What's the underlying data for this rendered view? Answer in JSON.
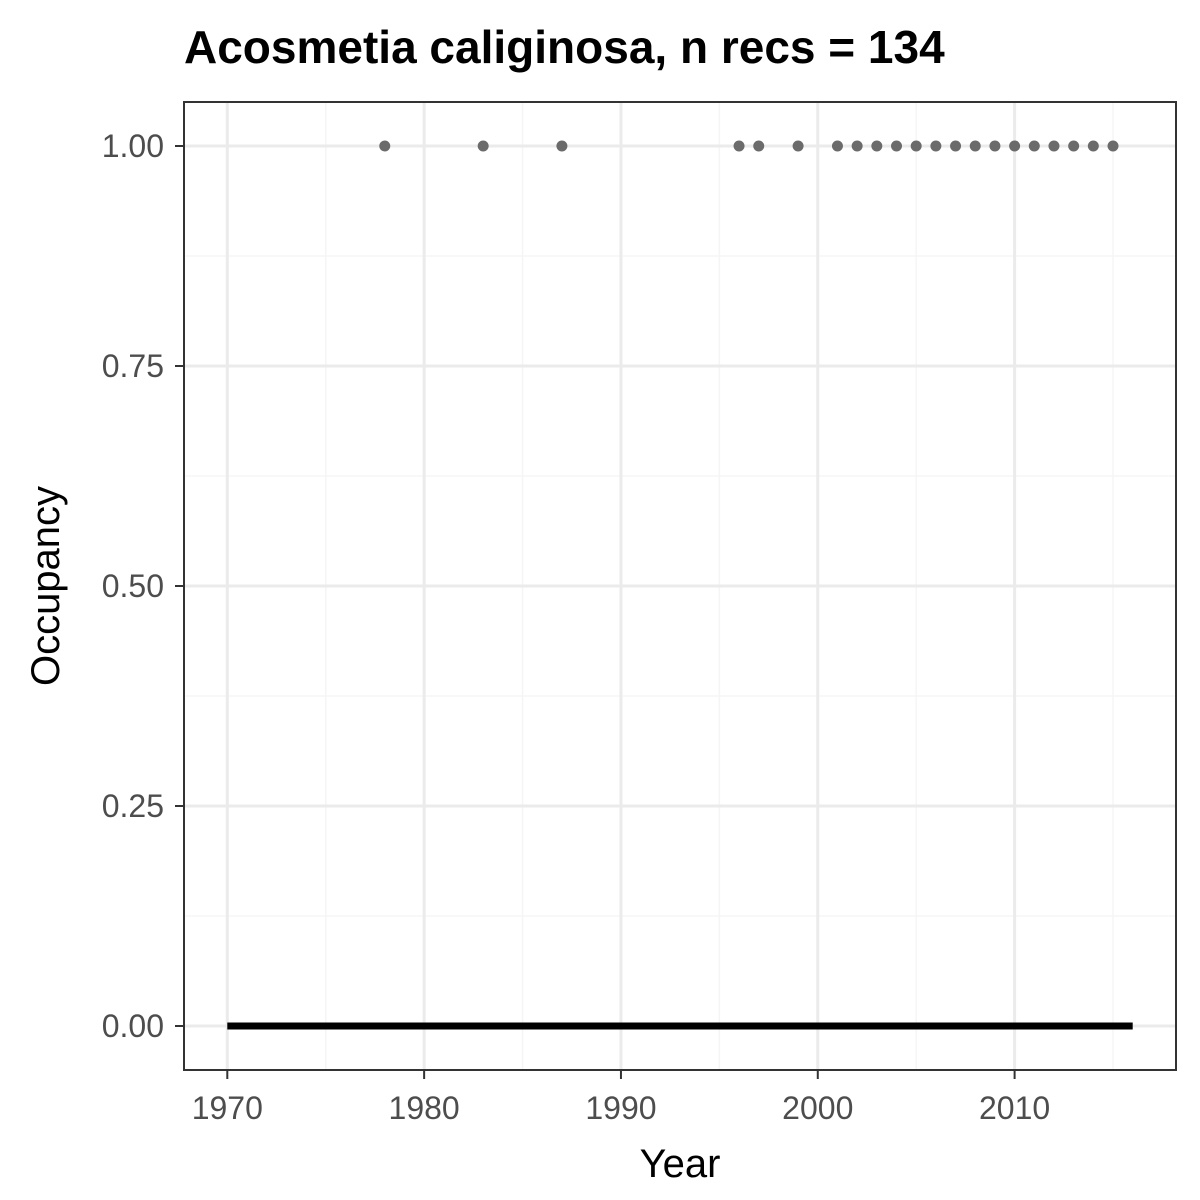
{
  "chart_data": {
    "type": "scatter",
    "title": "Acosmetia caliginosa, n recs = 134",
    "xlabel": "Year",
    "ylabel": "Occupancy",
    "xlim": [
      1967.8,
      2018.2
    ],
    "ylim": [
      -0.05,
      1.05
    ],
    "x_ticks": [
      1970,
      1980,
      1990,
      2000,
      2010
    ],
    "x_tick_labels": [
      "1970",
      "1980",
      "1990",
      "2000",
      "2010"
    ],
    "x_minor_ticks": [
      1975,
      1985,
      1995,
      2005,
      2015
    ],
    "y_ticks": [
      0,
      0.25,
      0.5,
      0.75,
      1
    ],
    "y_tick_labels": [
      "0.00",
      "0.25",
      "0.50",
      "0.75",
      "1.00"
    ],
    "y_minor_ticks": [
      0.125,
      0.375,
      0.625,
      0.875
    ],
    "grid": true,
    "legend": "none",
    "series": [
      {
        "kind": "points",
        "color": "#6b6b6b",
        "x": [
          1978,
          1983,
          1987,
          1996,
          1997,
          1999,
          2001,
          2002,
          2003,
          2004,
          2005,
          2006,
          2007,
          2008,
          2009,
          2010,
          2011,
          2012,
          2013,
          2014,
          2015
        ],
        "y": [
          1,
          1,
          1,
          1,
          1,
          1,
          1,
          1,
          1,
          1,
          1,
          1,
          1,
          1,
          1,
          1,
          1,
          1,
          1,
          1,
          1
        ]
      },
      {
        "kind": "line",
        "color": "#000000",
        "x": [
          1970,
          2016
        ],
        "y": [
          0,
          0
        ]
      }
    ],
    "colors": {
      "panel_border": "#333333",
      "grid_major": "#ebebeb",
      "grid_minor": "#f5f5f5",
      "tick_label": "#4d4d4d"
    }
  }
}
